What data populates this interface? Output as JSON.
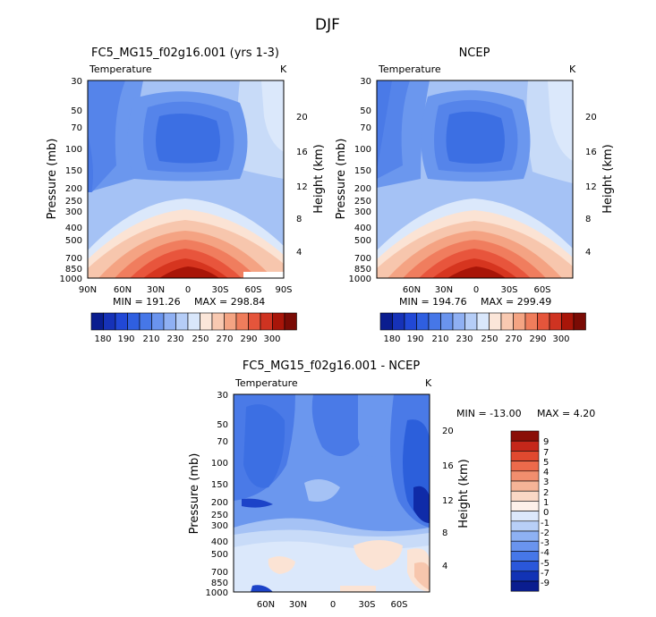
{
  "main_title": "DJF",
  "chart_data": [
    {
      "type": "contour",
      "title": "FC5_MG15_f02g16.001 (yrs 1-3)",
      "variable": "Temperature",
      "units": "K",
      "ylabel": "Pressure (mb)",
      "y2label": "Height (km)",
      "pressure_ticks": [
        "30",
        "50",
        "70",
        "100",
        "150",
        "200",
        "250",
        "300",
        "400",
        "500",
        "700",
        "850",
        "1000"
      ],
      "height_ticks": [
        "20",
        "16",
        "12",
        "8",
        "4"
      ],
      "x_ticks": [
        "90N",
        "60N",
        "30N",
        "0",
        "30S",
        "60S",
        "90S"
      ],
      "min_label": "MIN = 191.26",
      "max_label": "MAX = 298.84",
      "colorbar_labels": [
        "180",
        "190",
        "210",
        "230",
        "250",
        "270",
        "290",
        "300"
      ]
    },
    {
      "type": "contour",
      "title": "NCEP",
      "variable": "Temperature",
      "units": "K",
      "ylabel": "Pressure (mb)",
      "y2label": "Height (km)",
      "pressure_ticks": [
        "30",
        "50",
        "70",
        "100",
        "150",
        "200",
        "250",
        "300",
        "400",
        "500",
        "700",
        "850",
        "1000"
      ],
      "height_ticks": [
        "20",
        "16",
        "12",
        "8",
        "4"
      ],
      "x_ticks": [
        "60N",
        "30N",
        "0",
        "30S",
        "60S"
      ],
      "min_label": "MIN = 194.76",
      "max_label": "MAX = 299.49",
      "colorbar_labels": [
        "180",
        "190",
        "210",
        "230",
        "250",
        "270",
        "290",
        "300"
      ]
    },
    {
      "type": "contour",
      "title": "FC5_MG15_f02g16.001 - NCEP",
      "variable": "Temperature",
      "units": "K",
      "ylabel": "Pressure (mb)",
      "y2label": "Height (km)",
      "pressure_ticks": [
        "30",
        "50",
        "70",
        "100",
        "150",
        "200",
        "250",
        "300",
        "400",
        "500",
        "700",
        "850",
        "1000"
      ],
      "height_ticks": [
        "20",
        "16",
        "12",
        "8",
        "4"
      ],
      "x_ticks": [
        "60N",
        "30N",
        "0",
        "30S",
        "60S"
      ],
      "min_label": "MIN = -13.00",
      "max_label": "MAX =    4.20",
      "colorbar_labels": [
        "9",
        "7",
        "5",
        "4",
        "3",
        "2",
        "1",
        "0",
        "-1",
        "-2",
        "-3",
        "-4",
        "-5",
        "-7",
        "-9"
      ]
    }
  ]
}
